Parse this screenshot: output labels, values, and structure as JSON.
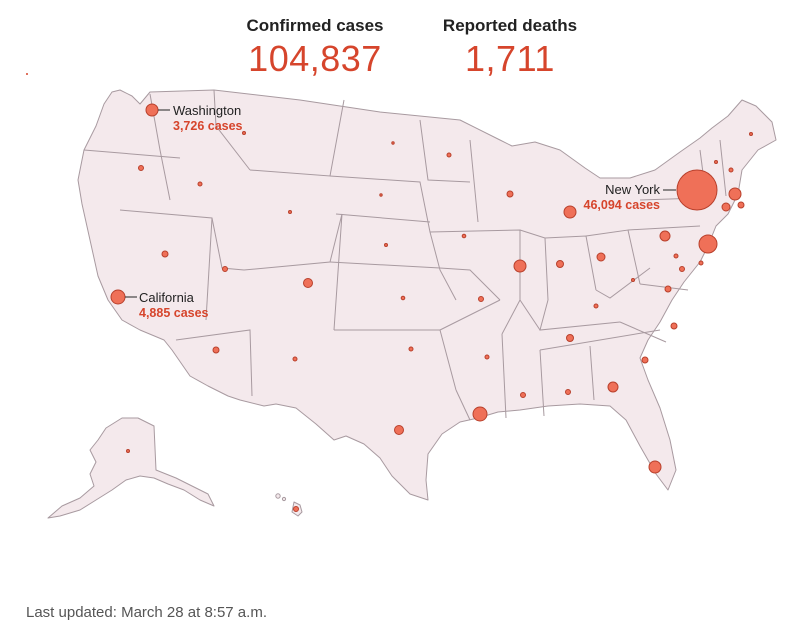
{
  "stats": {
    "cases_label": "Confirmed cases",
    "cases_value": "104,837",
    "deaths_label": "Reported deaths",
    "deaths_value": "1,711"
  },
  "callouts": {
    "washington": {
      "name": "Washington",
      "count": "3,726 cases"
    },
    "california": {
      "name": "California",
      "count": "4,885 cases"
    },
    "new_york": {
      "name": "New York",
      "count": "46,094 cases"
    }
  },
  "footer": {
    "updated": "Last updated: March 28 at 8:57 a.m."
  },
  "colors": {
    "accent": "#d6452c",
    "bubble_fill": "#ef7058",
    "bubble_stroke": "#b8402c",
    "land": "#f4e9ec",
    "border": "#a89aa0"
  }
}
